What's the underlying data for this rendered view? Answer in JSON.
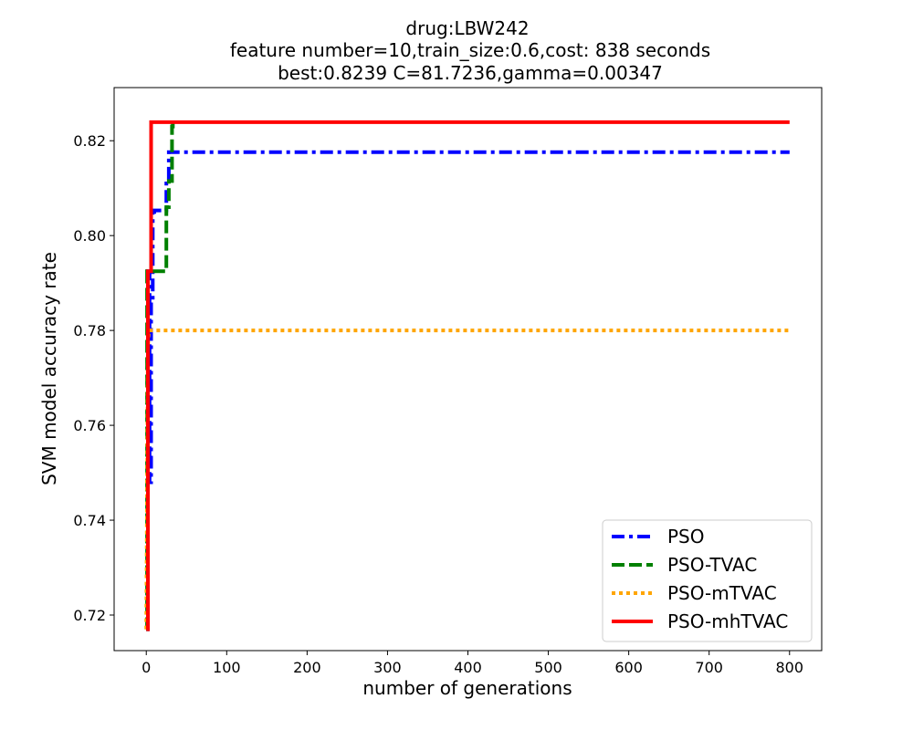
{
  "chart_data": {
    "type": "line",
    "title_lines": [
      "drug:LBW242",
      "feature number=10,train_size:0.6,cost: 838 seconds",
      "best:0.8239  C=81.7236,gamma=0.00347"
    ],
    "xlabel": "number of generations",
    "ylabel": "SVM model accuracy rate",
    "xlim": [
      -40,
      840
    ],
    "ylim": [
      0.7125,
      0.8312
    ],
    "xticks": [
      0,
      100,
      200,
      300,
      400,
      500,
      600,
      700,
      800
    ],
    "yticks": [
      0.72,
      0.74,
      0.76,
      0.78,
      0.8,
      0.82
    ],
    "ytick_labels": [
      "0.72",
      "0.74",
      "0.76",
      "0.78",
      "0.80",
      "0.82"
    ],
    "grid": false,
    "legend_position": "lower-right",
    "series": [
      {
        "name": "PSO",
        "color": "#0000ff",
        "style": "dashdot",
        "x": [
          0,
          2,
          2,
          4,
          4,
          6,
          6,
          8,
          8,
          10,
          10,
          25,
          25,
          28,
          28,
          800
        ],
        "y": [
          0.717,
          0.717,
          0.7925,
          0.7925,
          0.748,
          0.748,
          0.786,
          0.786,
          0.805,
          0.805,
          0.8053,
          0.8053,
          0.811,
          0.811,
          0.8176,
          0.8176
        ]
      },
      {
        "name": "PSO-TVAC",
        "color": "#008000",
        "style": "dashed",
        "x": [
          0,
          1,
          1,
          25,
          25,
          28,
          28,
          32,
          32,
          33,
          33,
          800
        ],
        "y": [
          0.717,
          0.717,
          0.7925,
          0.7925,
          0.806,
          0.806,
          0.8115,
          0.8115,
          0.823,
          0.823,
          0.8239,
          0.8239
        ],
        "shown_until_x": 33
      },
      {
        "name": "PSO-mTVAC",
        "color": "#ffa500",
        "style": "dotted",
        "x": [
          0,
          2,
          3,
          800
        ],
        "y": [
          0.717,
          0.776,
          0.78,
          0.78
        ]
      },
      {
        "name": "PSO-mhTVAC",
        "color": "#ff0000",
        "style": "solid",
        "x": [
          0,
          2,
          2,
          6,
          6,
          800
        ],
        "y": [
          0.717,
          0.717,
          0.7925,
          0.7925,
          0.8239,
          0.8239
        ]
      }
    ]
  }
}
